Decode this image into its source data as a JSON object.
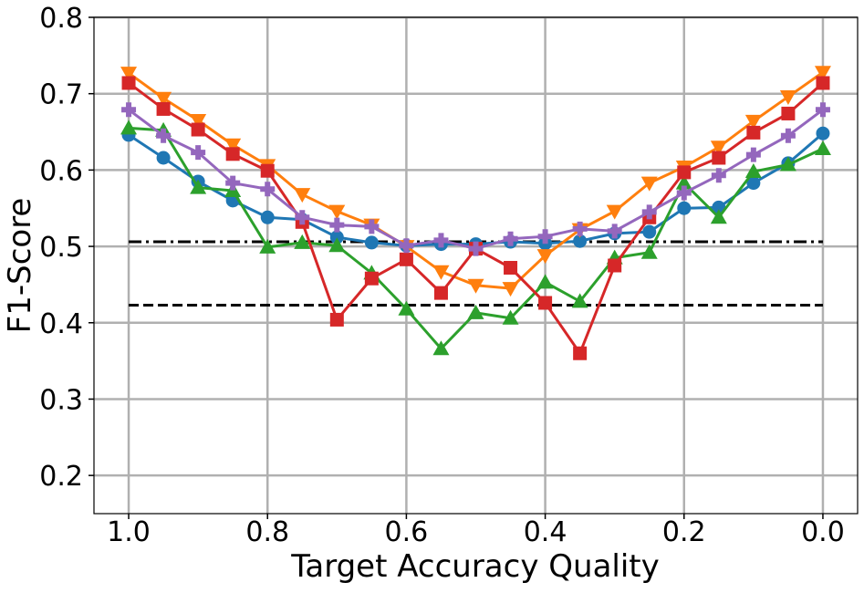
{
  "chart_data": {
    "type": "line",
    "xlabel": "Target Accuracy Quality",
    "ylabel": "F1-Score",
    "x": [
      1,
      0.95,
      0.9,
      0.85,
      0.8,
      0.75,
      0.7,
      0.65,
      0.6,
      0.55,
      0.5,
      0.45,
      0.4,
      0.35,
      0.3,
      0.25,
      0.2,
      0.15,
      0.1,
      0.05,
      0
    ],
    "xlim": [
      1.05,
      -0.05
    ],
    "xticks": [
      {
        "value": 1,
        "label": "1.0"
      },
      0.8,
      0.6,
      0.4,
      0.2,
      {
        "value": 0,
        "label": "0.0"
      }
    ],
    "ylim": [
      0.15,
      0.8
    ],
    "yticks": [
      0.2,
      0.3,
      0.4,
      0.5,
      0.6,
      0.7,
      0.8
    ],
    "grid": true,
    "series": [
      {
        "color": "#1f77b4",
        "marker": "circle",
        "values": [
          0.646,
          0.616,
          0.585,
          0.56,
          0.538,
          0.535,
          0.512,
          0.505,
          0.501,
          0.503,
          0.503,
          0.506,
          0.504,
          0.507,
          0.517,
          0.519,
          0.55,
          0.551,
          0.583,
          0.609,
          0.648
        ]
      },
      {
        "color": "#ff7f0e",
        "marker": "triangle-down",
        "values": [
          0.727,
          0.694,
          0.665,
          0.633,
          0.606,
          0.568,
          0.546,
          0.528,
          0.5,
          0.467,
          0.449,
          0.445,
          0.488,
          0.522,
          0.546,
          0.583,
          0.604,
          0.63,
          0.664,
          0.696,
          0.728
        ]
      },
      {
        "color": "#2ca02c",
        "marker": "triangle-up",
        "values": [
          0.655,
          0.652,
          0.577,
          0.573,
          0.499,
          0.505,
          0.501,
          0.465,
          0.418,
          0.366,
          0.413,
          0.406,
          0.453,
          0.428,
          0.485,
          0.492,
          0.583,
          0.538,
          0.598,
          0.607,
          0.628
        ]
      },
      {
        "color": "#d62728",
        "marker": "square",
        "values": [
          0.714,
          0.68,
          0.653,
          0.621,
          0.599,
          0.532,
          0.404,
          0.458,
          0.483,
          0.439,
          0.497,
          0.472,
          0.426,
          0.36,
          0.475,
          0.538,
          0.597,
          0.616,
          0.649,
          0.674,
          0.714
        ]
      },
      {
        "color": "#9467bd",
        "marker": "plus",
        "values": [
          0.679,
          0.645,
          0.623,
          0.583,
          0.575,
          0.538,
          0.528,
          0.526,
          0.501,
          0.508,
          0.497,
          0.51,
          0.513,
          0.523,
          0.52,
          0.545,
          0.57,
          0.593,
          0.62,
          0.645,
          0.679
        ]
      }
    ],
    "hlines": [
      {
        "y": 0.506,
        "style": "dashdot",
        "color": "#000000"
      },
      {
        "y": 0.423,
        "style": "dashed",
        "color": "#000000"
      }
    ]
  }
}
